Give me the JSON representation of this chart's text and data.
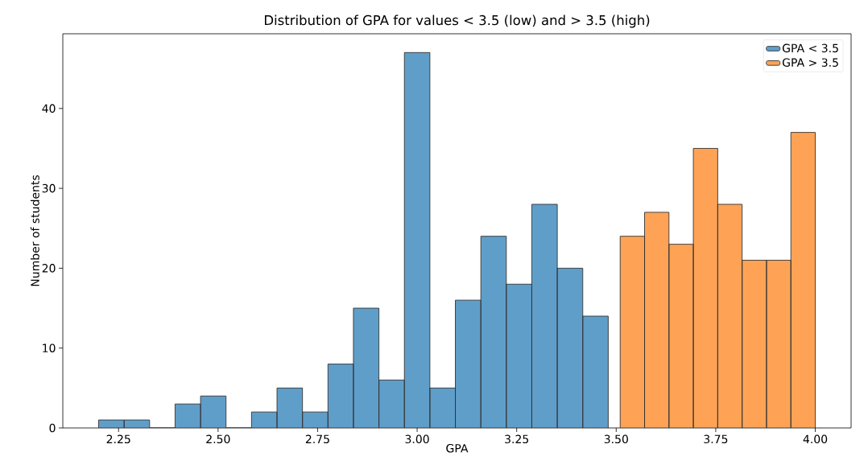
{
  "chart_data": {
    "type": "histogram",
    "title": "Distribution of GPA for values < 3.5 (low) and > 3.5 (high)",
    "xlabel": "GPA",
    "ylabel": "Number of students",
    "series": [
      {
        "name": "GPA < 3.5",
        "color": "#5f9ec9",
        "values": [
          1,
          1,
          0,
          3,
          4,
          0,
          2,
          5,
          2,
          8,
          15,
          6,
          47,
          5,
          16,
          24,
          18,
          28,
          20,
          14,
          null,
          null,
          null,
          null,
          null,
          null,
          null,
          null,
          null
        ]
      },
      {
        "name": "GPA > 3.5",
        "color": "#fea355",
        "values": [
          null,
          null,
          null,
          null,
          null,
          null,
          null,
          null,
          null,
          null,
          null,
          null,
          null,
          null,
          null,
          null,
          null,
          null,
          null,
          null,
          null,
          24,
          27,
          23,
          35,
          28,
          21,
          21,
          37
        ]
      }
    ],
    "bins": [
      2.2,
      2.264,
      2.328,
      2.392,
      2.456,
      2.52,
      2.584,
      2.648,
      2.712,
      2.776,
      2.84,
      2.904,
      2.968,
      3.032,
      3.096,
      3.16,
      3.224,
      3.288,
      3.352,
      3.416,
      3.48,
      3.51,
      3.57125,
      3.6325,
      3.69375,
      3.755,
      3.81625,
      3.8775,
      3.93875,
      4.0
    ],
    "xlim": [
      2.11,
      4.09
    ],
    "ylim": [
      0,
      49.35
    ],
    "xticks": [
      {
        "value": 2.25,
        "label": "2.25"
      },
      {
        "value": 2.5,
        "label": "2.50"
      },
      {
        "value": 2.75,
        "label": "2.75"
      },
      {
        "value": 3.0,
        "label": "3.00"
      },
      {
        "value": 3.25,
        "label": "3.25"
      },
      {
        "value": 3.5,
        "label": "3.50"
      },
      {
        "value": 3.75,
        "label": "3.75"
      },
      {
        "value": 4.0,
        "label": "4.00"
      }
    ],
    "yticks": [
      {
        "value": 0,
        "label": "0"
      },
      {
        "value": 10,
        "label": "10"
      },
      {
        "value": 20,
        "label": "20"
      },
      {
        "value": 30,
        "label": "30"
      },
      {
        "value": 40,
        "label": "40"
      }
    ],
    "legend": "top right",
    "grid": false
  }
}
